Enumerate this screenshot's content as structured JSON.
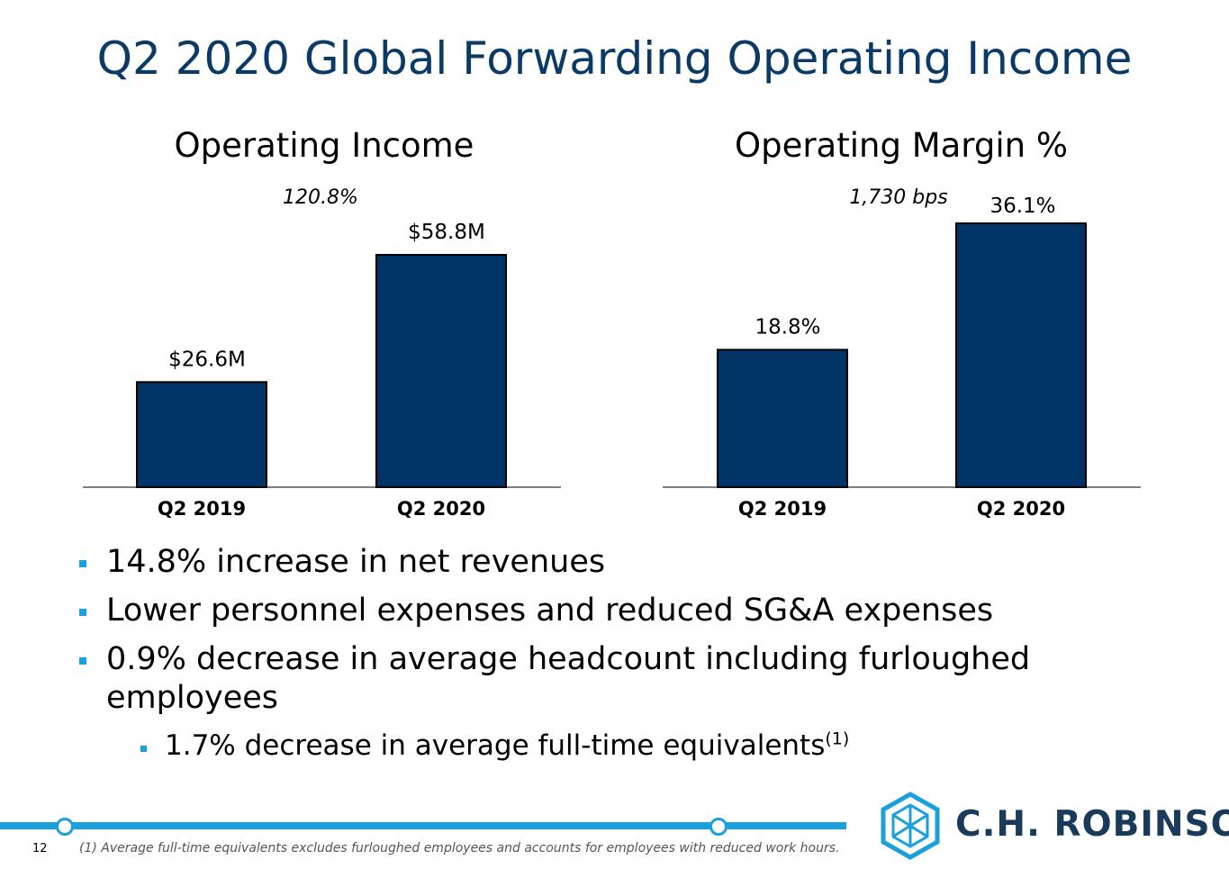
{
  "slide": {
    "title": "Q2 2020 Global Forwarding Operating Income",
    "page_number": "12",
    "footnote": "(1) Average full-time equivalents excludes furloughed employees and accounts for employees with reduced work hours.",
    "logo_text": "C.H. ROBINSON"
  },
  "bullets": {
    "b1": "14.8% increase in net revenues",
    "b2": "Lower personnel expenses and reduced SG&A expenses",
    "b3": "0.9% decrease in average headcount including furloughed employees",
    "sub1": "1.7% decrease in average full-time equivalents",
    "sub1_sup": "(1)"
  },
  "colors": {
    "bar": "#003366",
    "title": "#0b3a66",
    "accent": "#1aa0dc"
  },
  "chart_data": [
    {
      "type": "bar",
      "title": "Operating Income",
      "annotation": "120.8%",
      "categories": [
        "Q2 2019",
        "Q2 2020"
      ],
      "values": [
        26.6,
        58.8
      ],
      "labels": [
        "$26.6M",
        "$58.8M"
      ],
      "ylim": [
        0,
        58.8
      ]
    },
    {
      "type": "bar",
      "title": "Operating Margin %",
      "annotation": "1,730 bps",
      "categories": [
        "Q2 2019",
        "Q2 2020"
      ],
      "values": [
        18.8,
        36.1
      ],
      "labels": [
        "18.8%",
        "36.1%"
      ],
      "ylim": [
        0,
        36.1
      ]
    }
  ]
}
